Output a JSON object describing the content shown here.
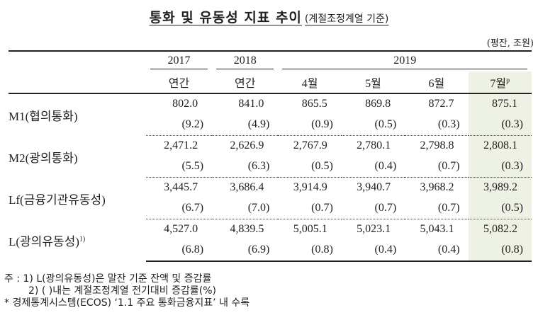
{
  "title": {
    "main": "통화 및 유동성 지표 추이",
    "sub": "(계절조정계열 기준)"
  },
  "unit": "(평잔, 조원)",
  "header": {
    "years": [
      "2017",
      "2018",
      "2019"
    ],
    "periods": [
      "연간",
      "연간",
      "4월",
      "5월",
      "6월",
      "7월"
    ],
    "preliminary_mark": "p"
  },
  "rows": [
    {
      "label": "M1(협의통화)",
      "footnote": "",
      "values": [
        "802.0",
        "841.0",
        "865.5",
        "869.8",
        "872.7",
        "875.1"
      ],
      "growth": [
        "(9.2)",
        "(4.9)",
        "(0.9)",
        "(0.5)",
        "(0.3)",
        "(0.3)"
      ]
    },
    {
      "label": "M2(광의통화)",
      "footnote": "",
      "values": [
        "2,471.2",
        "2,626.9",
        "2,767.9",
        "2,780.1",
        "2,798.8",
        "2,808.1"
      ],
      "growth": [
        "(5.5)",
        "(6.3)",
        "(0.5)",
        "(0.4)",
        "(0.7)",
        "(0.3)"
      ]
    },
    {
      "label": "Lf(금융기관유동성)",
      "footnote": "",
      "values": [
        "3,445.7",
        "3,686.4",
        "3,914.9",
        "3,940.7",
        "3,968.2",
        "3,989.2"
      ],
      "growth": [
        "(6.7)",
        "(7.0)",
        "(0.7)",
        "(0.7)",
        "(0.7)",
        "(0.5)"
      ]
    },
    {
      "label": "L(광의유동성)",
      "footnote": "1)",
      "values": [
        "4,527.0",
        "4,839.5",
        "5,005.1",
        "5,023.1",
        "5,043.1",
        "5,082.2"
      ],
      "growth": [
        "(6.8)",
        "(6.9)",
        "(0.8)",
        "(0.4)",
        "(0.4)",
        "(0.8)"
      ]
    }
  ],
  "notes": {
    "line1": "주 :  1) L(광의유동성)은 말잔 기준 잔액 및 증감률",
    "line2": "2) (    )내는 계절조정계열 전기대비 증감률(%)",
    "line3": "* 경제통계시스템(ECOS) ‘1.1 주요 통화금융지표’ 내 수록"
  },
  "colors": {
    "highlight_column": "#eef2e4",
    "rule": "#222222"
  }
}
